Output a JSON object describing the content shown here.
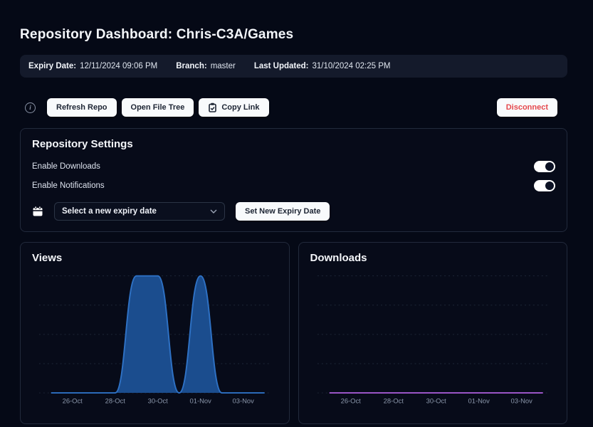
{
  "page": {
    "title": "Repository Dashboard: Chris-C3A/Games"
  },
  "info_bar": {
    "items": [
      {
        "label": "Expiry Date:",
        "value": "12/11/2024 09:06 PM"
      },
      {
        "label": "Branch:",
        "value": "master"
      },
      {
        "label": "Last Updated:",
        "value": "31/10/2024 02:25 PM"
      }
    ]
  },
  "toolbar": {
    "info_icon_glyph": "i",
    "refresh_label": "Refresh Repo",
    "open_file_tree_label": "Open File Tree",
    "copy_link_label": "Copy Link",
    "disconnect_label": "Disconnect"
  },
  "settings": {
    "title": "Repository Settings",
    "toggles": [
      {
        "label": "Enable Downloads",
        "state": "on"
      },
      {
        "label": "Enable Notifications",
        "state": "on"
      }
    ],
    "expiry_select_placeholder": "Select a new expiry date",
    "set_expiry_label": "Set New Expiry Date"
  },
  "colors": {
    "page_bg": "#050916",
    "panel_bg": "#070b19",
    "panel_border": "#222a3c",
    "info_bar_bg": "#141a2b",
    "button_bg": "#f8fafc",
    "button_text": "#1c2433",
    "danger_text": "#e5484d",
    "views_fill": "#1b4d8e",
    "views_stroke": "#2e71c4",
    "downloads_stroke": "#a55ad2",
    "grid": "#1e2737",
    "tick_text": "#8d99ad"
  },
  "chart_data": [
    {
      "type": "area",
      "title": "Views",
      "x": [
        "25-Oct",
        "26-Oct",
        "27-Oct",
        "28-Oct",
        "29-Oct",
        "30-Oct",
        "31-Oct",
        "01-Nov",
        "02-Nov",
        "03-Nov",
        "04-Nov"
      ],
      "values": [
        0,
        0,
        0,
        0,
        1,
        1,
        0,
        1,
        0,
        0,
        0
      ],
      "xticks": [
        "26-Oct",
        "28-Oct",
        "30-Oct",
        "01-Nov",
        "03-Nov"
      ],
      "ylim": [
        0,
        1
      ],
      "grid": "dotted-horizontal",
      "legend": "none",
      "line_color": "#2e71c4",
      "fill_color": "#1b4d8e",
      "grid_color": "#1e2737",
      "tick_color": "#8d99ad"
    },
    {
      "type": "line",
      "title": "Downloads",
      "x": [
        "25-Oct",
        "26-Oct",
        "27-Oct",
        "28-Oct",
        "29-Oct",
        "30-Oct",
        "31-Oct",
        "01-Nov",
        "02-Nov",
        "03-Nov",
        "04-Nov"
      ],
      "values": [
        0,
        0,
        0,
        0,
        0,
        0,
        0,
        0,
        0,
        0,
        0
      ],
      "xticks": [
        "26-Oct",
        "28-Oct",
        "30-Oct",
        "01-Nov",
        "03-Nov"
      ],
      "ylim": [
        0,
        1
      ],
      "grid": "dotted-horizontal",
      "legend": "none",
      "line_color": "#a55ad2",
      "fill_color": "none",
      "grid_color": "#1e2737",
      "tick_color": "#8d99ad"
    }
  ]
}
